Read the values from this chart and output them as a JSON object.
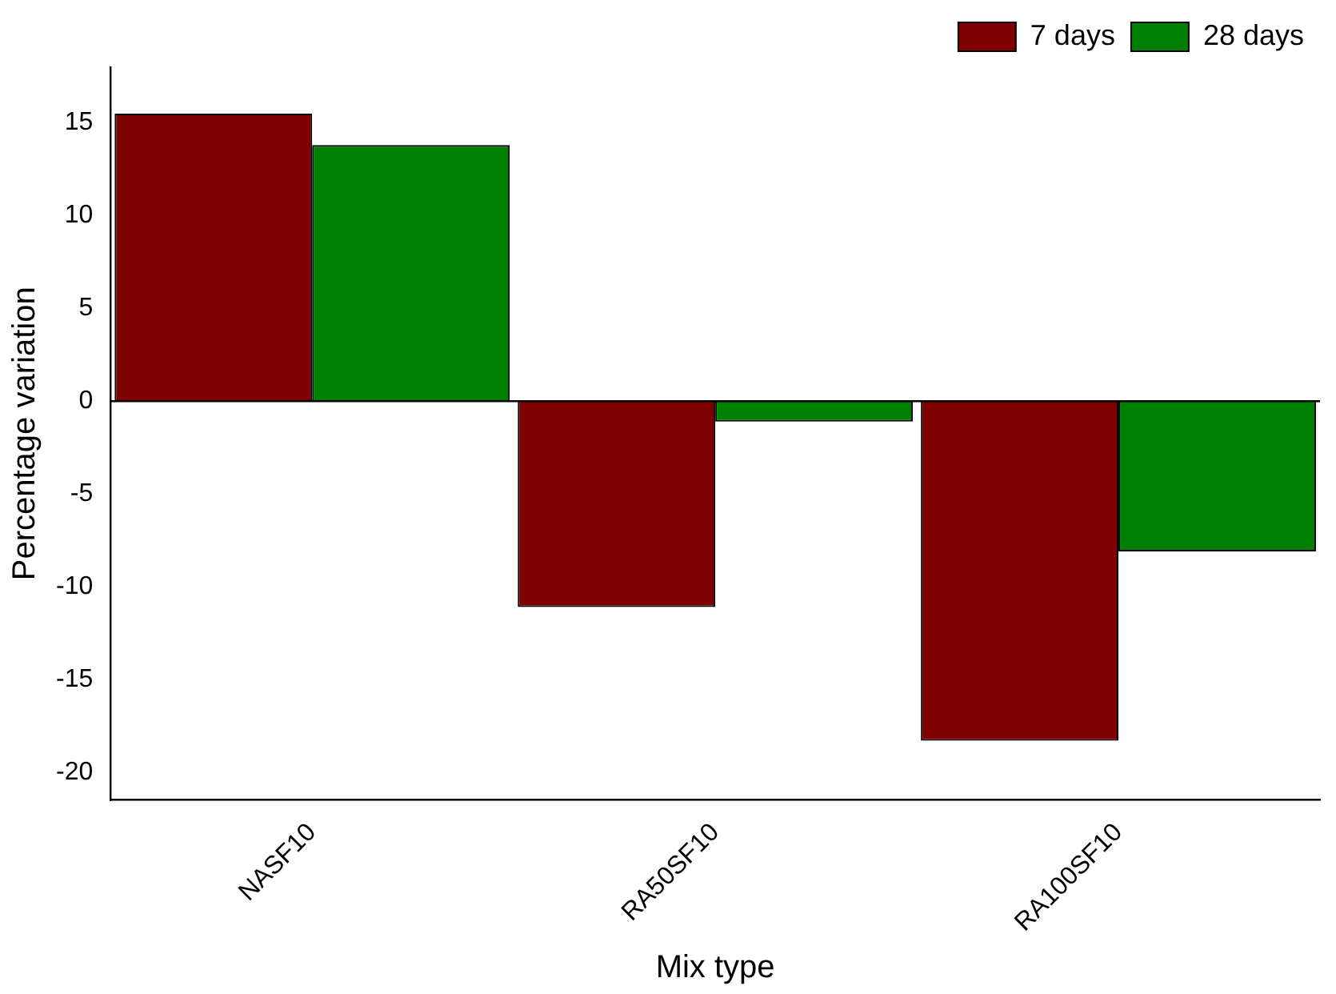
{
  "chart_data": {
    "type": "bar",
    "xlabel": "Mix type",
    "ylabel": "Percentage variation",
    "categories": [
      "NASF10",
      "RA50SF10",
      "RA100SF10"
    ],
    "series": [
      {
        "name": "7 days",
        "color": "#800000",
        "values": [
          15.5,
          -11.1,
          -18.3
        ]
      },
      {
        "name": "28 days",
        "color": "#008000",
        "values": [
          13.8,
          -1.1,
          -8.1
        ]
      }
    ],
    "ylim": [
      -21.5,
      18
    ],
    "yticks": [
      -20,
      -15,
      -10,
      -5,
      0,
      5,
      10,
      15
    ],
    "grid": false,
    "legend": "top right",
    "ref_lines": [
      {
        "axis": "y",
        "value": 0,
        "color": "#000000"
      }
    ]
  }
}
